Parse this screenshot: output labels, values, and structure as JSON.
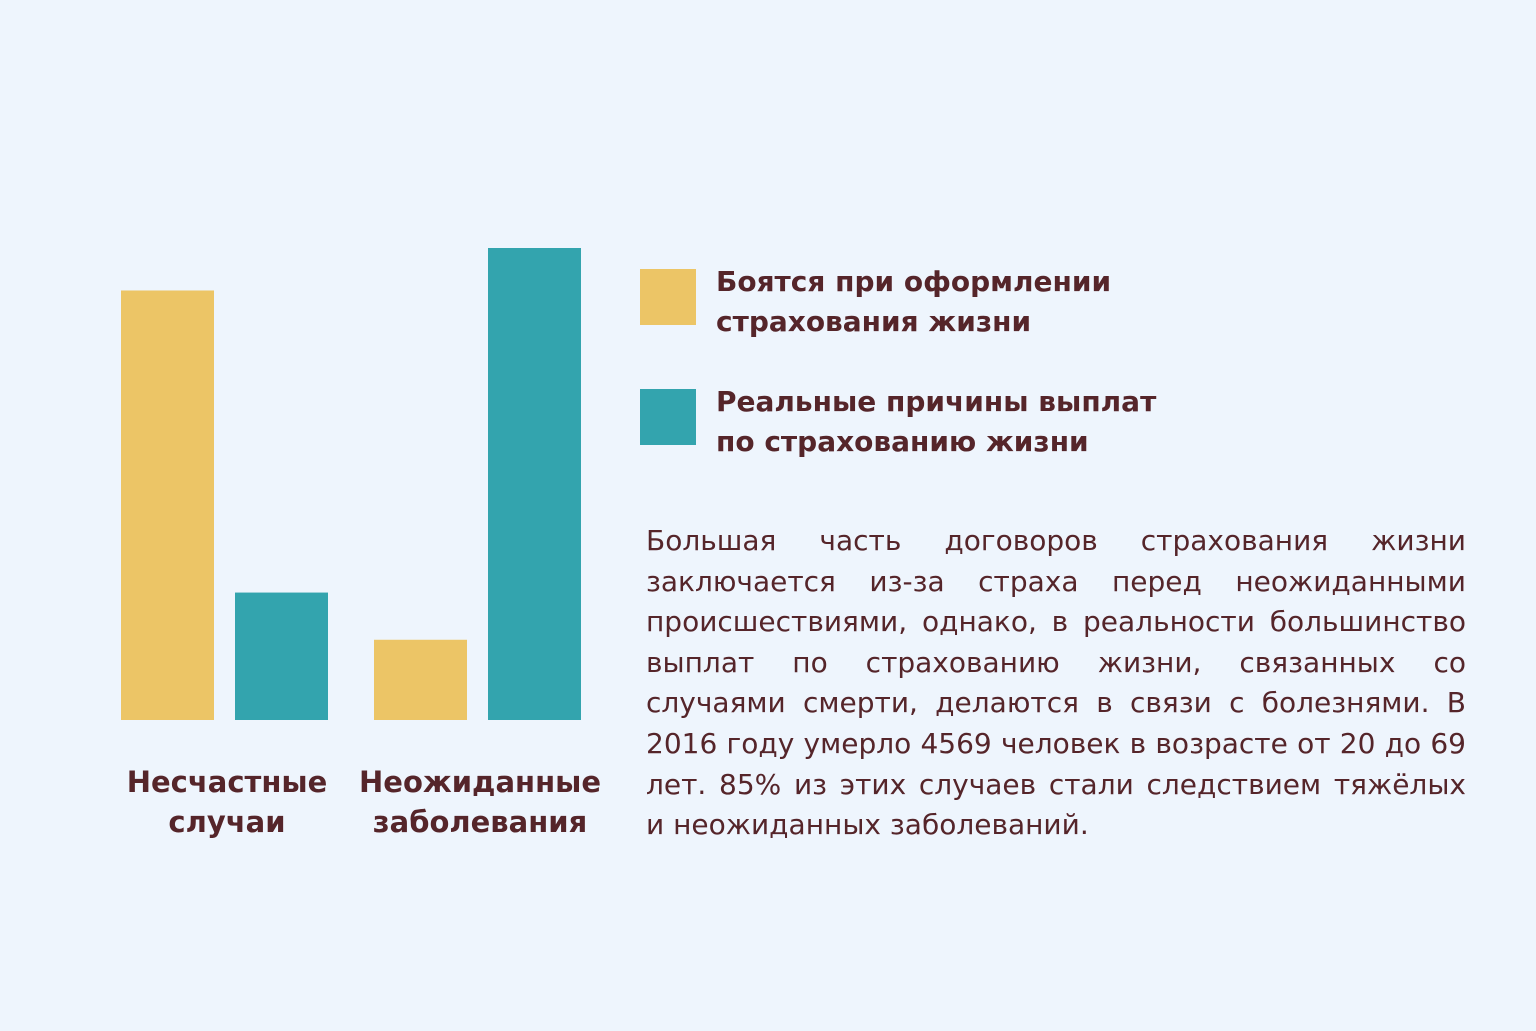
{
  "colors": {
    "background": "#eef5fd",
    "text": "#55252a",
    "series_fear": "#ecc566",
    "series_real": "#33a4ae"
  },
  "legend": [
    {
      "label": "Боятся при оформлении страхования жизни",
      "color": "#ecc566"
    },
    {
      "label": "Реальные причины выплат по страхованию жизни",
      "color": "#33a4ae"
    }
  ],
  "description": "Большая часть договоров страхования жизни заключается из-за страха перед неожиданными происшествиями, однако, в реальности большинство выплат по страхованию жизни, связанных со случаями смерти, делаются в связи с болезнями. В 2016 году умерло 4569 человек в возрасте от 20 до 69 лет. 85% из этих случаев стали следствием тяжёлых и неожиданных заболеваний.",
  "chart_data": {
    "type": "bar",
    "title": "",
    "xlabel": "",
    "ylabel": "",
    "ylim": [
      0,
      100
    ],
    "grid": false,
    "legend_position": "right",
    "categories": [
      [
        "Несчастные",
        "случаи"
      ],
      [
        "Неожиданные",
        "заболевания"
      ]
    ],
    "series": [
      {
        "name": "Боятся при оформлении страхования жизни",
        "color": "#ecc566",
        "values": [
          91,
          17
        ]
      },
      {
        "name": "Реальные причины выплат по страхованию жизни",
        "color": "#33a4ae",
        "values": [
          27,
          100
        ]
      }
    ]
  }
}
